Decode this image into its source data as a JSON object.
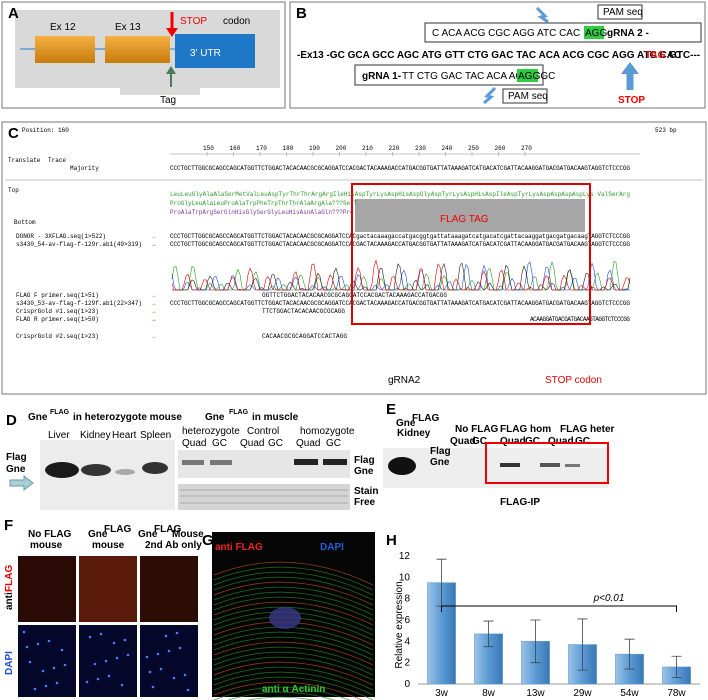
{
  "panel_a": {
    "letter": "A",
    "exon_12": "Ex 12",
    "exon_13": "Ex 13",
    "stop": "STOP",
    "codon": "codon",
    "utr": "3' UTR",
    "tag": "Tag"
  },
  "panel_b": {
    "letter": "B",
    "grna2_seq": "C ACA ACG CGC AGG ATC CAC",
    "grna2_pam": "AGG",
    "grna2_label": "gRNA 2 -",
    "pam_top": "PAM seq",
    "seq_main": "-Ex13 -GC GCA GCC AGC ATG GTT CTG GAC TAC ACA ACG CGC AGG ATC CAC",
    "seq_stop": "TAG",
    "seq_end": "GTC---",
    "grna1_label": "gRNA 1-",
    "grna1_seq": "TT CTG GAC TAC ACA  ACG  CGC",
    "grna1_pam": "AGG",
    "pam_bottom": "PAM seq",
    "stop": "STOP"
  },
  "panel_c": {
    "letter": "C",
    "position": "Position: 160",
    "length": "523 bp",
    "ruler": [
      150,
      160,
      170,
      180,
      190,
      200,
      210,
      220,
      230,
      240,
      250,
      260,
      270
    ],
    "translate": "Translate",
    "trace": "Trace",
    "majority": "Majority",
    "top": "Top",
    "bottom": "Bottom",
    "majority_seq": "CCCTGCTTGGCGCAGCCAGCATGGTTCTGGACTACACAACGCGCAGGATCCACGACTACAAAGACCATGACGGTGATTATAAAGATCATGACATCGATTACAAGGATGACGATGACAAGTAGGTCTCCCGG",
    "aa_lines": [
      "LeuLeuGlyAlaAlaSerMetValLeuAspTyrThrThrArgArgIleHisAspTyrLysAspHisAspGlyAspTyrLysAspHisAspIleAspTyrLysAspAspAspAspLys ValSerArg",
      "ProGlyLeuAlaLeuProAlaTrpPheTrpThrThrAlaArgAla???SerT",
      "ProAlaTrpArgSerGlnHisGlySerGlyLeuHisAsnAlaGln???Pro"
    ],
    "tracks": [
      {
        "name": "DONOR - 3XFLAG.seq(1>522)",
        "seq": "CCCTGCTTGGCGCAGCCAGCATGGTTCTGGACTACACAACGCGCAGGATCCACgactacaaagaccatgacggtgattataaagatcatgacatcgattacaaggatgacgatgacaagTAGGTCTCCCGG"
      },
      {
        "name": "s3430_54-av-flag-f-129r.ab1(49>319)",
        "seq": "CCCTGCTTGGCGCAGCCAGCATGGTTCTGGACTACACAACGCGCAGGATCCACGACTACAAAGACCATGACGGTGATTATAAAGATCATGACATCGATTACAAGGATGACGATGACAAGTAGGTCTCCCGG"
      },
      {
        "name": "FLAG F primer.seq(1>51)",
        "seq": "GGTTCTGGACTACACAACGCGCAGGATCCACGACTACAAAGACCATGACGG"
      },
      {
        "name": "s3430_53-av-flag-f-129f.ab1(22>347)",
        "seq": "CCCTGCTTGGCGCAGCCAGCATGGTTCTGGACTACACAACGCGCAGGATCCACGACTACAAAGACCATGACGGTGATTATAAAGATCATGACATCGATTACAAGGATGACGATGACAAGTAGGTCTCCCGG"
      },
      {
        "name": "CrisprGold #1.seq(1>23)",
        "seq": "TTCTGGACTACACAACGCGCAGG"
      },
      {
        "name": "FLAG R primer.seq(1>50)",
        "seq": "ACAAGGATGACGATGACAAGTAGGTCTCCCGG"
      },
      {
        "name": "CrisprGold #2.seq(1>23)",
        "seq": "CACAACGCGCAGGATCCACTAGG"
      }
    ],
    "flag_tag": "FLAG TAG",
    "grna2": "gRNA2",
    "stop_codon": "STOP codon"
  },
  "panel_d": {
    "letter": "D",
    "gne": "Gne",
    "flag_sup": "FLAG",
    "title_left": "in heterozygote mouse",
    "tissues": [
      "Liver",
      "Kidney",
      "Heart",
      "Spleen"
    ],
    "band_flag": "Flag",
    "band_gne": "Gne",
    "title_right": "in muscle",
    "groups": [
      "heterozygote",
      "Control",
      "homozygote"
    ],
    "lanes": [
      "Quad",
      "GC",
      "Quad",
      "GC",
      "Quad",
      "GC"
    ],
    "right_flag": "Flag",
    "right_gne": "Gne",
    "stain": "Stain",
    "free": "Free"
  },
  "panel_e": {
    "letter": "E",
    "gne": "Gne",
    "flag_sup": "FLAG",
    "kidney": "Kidney",
    "marker": "M",
    "groups": [
      "No FLAG",
      "FLAG hom",
      "FLAG heter"
    ],
    "lanes": [
      "Quad",
      "GC",
      "Quad",
      "GC",
      "Quad",
      "GC"
    ],
    "band_flag": "Flag",
    "band_gne": "Gne",
    "ip": "FLAG-IP"
  },
  "panel_f": {
    "letter": "F",
    "col1_a": "No FLAG",
    "col1_b": "mouse",
    "gne": "Gne",
    "flag_sup": "FLAG",
    "col2_b": "mouse",
    "col3_a": "Mouse",
    "col3_b": "2nd Ab only",
    "anti": "anti",
    "flag": "FLAG",
    "dapi": "DAPI"
  },
  "panel_g": {
    "letter": "G",
    "anti_flag": "anti FLAG",
    "dapi": "DAPI",
    "actinin": "anti α Actinin"
  },
  "panel_h": {
    "letter": "H"
  },
  "chart_data": {
    "type": "bar",
    "categories": [
      "3w",
      "8w",
      "13w",
      "29w",
      "54w",
      "78w"
    ],
    "values": [
      9.5,
      4.7,
      4.0,
      3.7,
      2.8,
      1.6
    ],
    "errors": [
      2.2,
      1.2,
      2.0,
      2.4,
      1.4,
      1.0
    ],
    "color": "#5b9bd5",
    "y_label": "Relative expression",
    "annotation": "p<0.01",
    "ylim": [
      0,
      12
    ],
    "yticks": [
      0,
      2,
      4,
      6,
      8,
      10,
      12
    ]
  }
}
